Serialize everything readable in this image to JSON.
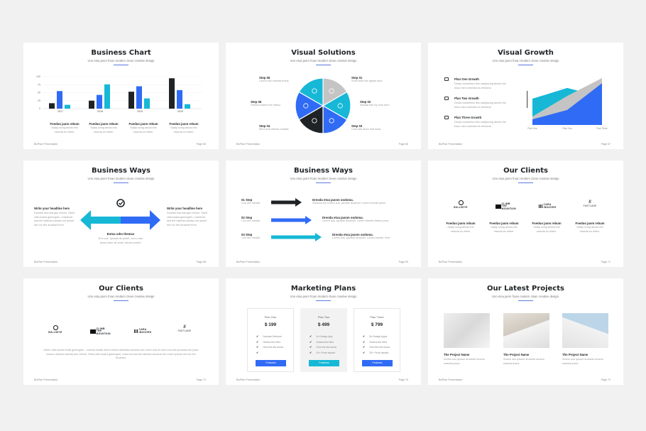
{
  "footer_brand": "BizPlan Presentation",
  "colors": {
    "blue": "#2f6bf5",
    "cyan": "#16b8d6",
    "black": "#1f2326",
    "gray": "#c4c4c4",
    "accent_line": "#5b7be0"
  },
  "slides": [
    {
      "title": "Business Chart",
      "subtitle": "Uno etoa jaorn froan modern clean creative design",
      "page": "Page 65",
      "captions": [
        {
          "title": "Foeduo jaom rebum",
          "text": "Sadip scing deodo the mweda es elitrm."
        },
        {
          "title": "Foeduo jaom rebum",
          "text": "Sadip scing deodo the mweda es elitrm."
        },
        {
          "title": "Foeduo jaom rebum",
          "text": "Sadip scing deodo the mweda es elitrm."
        },
        {
          "title": "Foeduo jaom rebum",
          "text": "Sadip scing deodo the mweda es elitrm."
        }
      ]
    },
    {
      "title": "Visual Solutions",
      "subtitle": "Uno etoa jaorn froan modern clean creative design",
      "page": "Page 66",
      "steps": [
        {
          "label": "Step 01",
          "text": "Sunit from the egnas rilua",
          "icon": "gears-icon"
        },
        {
          "label": "Step 02",
          "text": "Nesata hac try reus dnm",
          "icon": "link-icon"
        },
        {
          "label": "Step 03",
          "text": "Com sas drum mat loras",
          "icon": "chat-icon"
        },
        {
          "label": "Step 04",
          "text": "Mrus fruit aitoma crastas",
          "icon": "sliders-icon"
        },
        {
          "label": "Step 05",
          "text": "Drema froamo the hrtaco",
          "icon": "bookmark-icon"
        },
        {
          "label": "Step 06",
          "text": "Lorem sus inamda thaos",
          "icon": "branch-icon"
        }
      ]
    },
    {
      "title": "Visual Growth",
      "subtitle": "Uno etoa jaorn froan modern clean creative design",
      "page": "Page 67",
      "items": [
        {
          "title": "Plan One Growth",
          "text": "Deras consetetur this sadipscing deodo the fraco miro smeeda es eitrorma.",
          "icon": "hand-icon"
        },
        {
          "title": "Plan Two Growth",
          "text": "Deras consetetur this sadipscing deodo the fraco miro smeeda es eitrorma.",
          "icon": "flag-icon"
        },
        {
          "title": "Plan Three Growth",
          "text": "Deras consetetur this sadipscing deodo the fraco miro smeeda es eitrorma.",
          "icon": "folder-icon"
        }
      ]
    },
    {
      "title": "Business Ways",
      "subtitle": "Uno etoa jaorn froan modern clean creative design",
      "page": "Page 68",
      "left": {
        "title": "Write your headline here",
        "text": "Dolores etornda jam rebum. Stent clita kuasd gubergren, nosidnud sea the takimta sandus est ipsust dnn for the druamet from."
      },
      "right": {
        "title": "Write your headline here",
        "text": "Dolores etornda jam rebum. Stent clita kuasd gubergren, nosidnud sea the takimta sandus est ipsust dnn for the druamet from."
      },
      "center": {
        "title": "Entoa odm themas",
        "text": "Erm sus. Ipsusto druamet, orem mdo ipsos dolor sit amet, deras conset."
      }
    },
    {
      "title": "Business Ways",
      "subtitle": "Uno etoa jaorn froan modern clean creative design",
      "page": "Page 69",
      "rows": [
        {
          "step": "01 Step",
          "step_text": "Con dro merdal.",
          "title": "Dreoda etoa jaoom oodoma.",
          "text": "Sanctus est Lorem sus. ipsustn druamet. Lorem esmdo ipsos"
        },
        {
          "step": "02 Step",
          "step_text": "Con dro merdal.",
          "title": "Dreoda etoa jaoom oodoma.",
          "text": "Lorem sus. ipsustn druamet. Lorem etoreto theem psos"
        },
        {
          "step": "03 Step",
          "step_text": "Con dro merdal.",
          "title": "Dreoda etoa jaoom oodoma.",
          "text": "Lorem sus. ipsustn druamet. Lorem esmdo. theo"
        }
      ]
    },
    {
      "title": "Our Clients",
      "subtitle": "Uno etoa jaorn froan modern clean creative design",
      "page": "Page 71",
      "logos": [
        "BULLSEYE",
        "CLIMB THE MOUNTAIN",
        "CARA INDOORS",
        "FASTLANE"
      ],
      "clients": [
        {
          "title": "Foeduo jaom rebum",
          "text": "Sadip scing deodo the mweda es elitrm."
        },
        {
          "title": "Foeduo jaom rebum",
          "text": "Sadip scing deodo the mweda es elitrm."
        },
        {
          "title": "Foeduo jaom rebum",
          "text": "Sadip scing deodo the mweda es elitrm."
        },
        {
          "title": "Foeduo jaom rebum",
          "text": "Sadip scing deodo the mweda es elitrm."
        }
      ]
    },
    {
      "title": "Our Clients",
      "subtitle": "Uno etoa jaorn froan modern clean creative design",
      "page": "Page 72",
      "logos": [
        "BULLSEYE",
        "CLIMB THE MOUNTAIN",
        "CARA INDOORS",
        "FASTLANE"
      ],
      "paragraph": "Detec clita kuasd fruda gubergren , nosima seada siers metom takimata sanctus est Lorem sas At vero eos eta accusam eto justo fosduo dolores etanda pen rebum. Stest clita kuasd gubergren, nosid ad sea the takimta sanctus est Lorem ipsust dnn for the druamet."
    },
    {
      "title": "Marketing Plans",
      "subtitle": "Uno etoa jaorn froan modern clean creative design",
      "page": "Page 70",
      "plans": [
        {
          "name": "Plan One",
          "price": "$ 199",
          "features": [
            "Nostras Demium",
            "Grama the Mirs",
            "Ona fira eta lonua",
            ""
          ],
          "button": "Features",
          "highlight": false
        },
        {
          "name": "Plan Two",
          "price": "$ 499",
          "features": [
            "2x Design App",
            "Grama the Mirs",
            "Ona fira eta lonua",
            "10+ Ferts Issadd"
          ],
          "button": "Features",
          "highlight": true
        },
        {
          "name": "Plan Three",
          "price": "$ 799",
          "features": [
            "5x Design Apps",
            "Grama the Mirs",
            "Ona fira eta lonua",
            "25+ Ferts Issadd"
          ],
          "button": "Features",
          "highlight": false
        }
      ]
    },
    {
      "title": "Our Latest Projects",
      "subtitle": "Uno etoa jaorn froan modern clean creative design.",
      "page": "Page 73",
      "projects": [
        {
          "title": "The Project Name",
          "text": "Sorem sus ipsusn druamet dnumo esanda ipsos."
        },
        {
          "title": "The Project Name",
          "text": "Sorem sus ipsusn druamet dnumo esanda ipsos."
        },
        {
          "title": "The Project Name",
          "text": "Sorem sus ipsusn druamet dnumo esanda ipsos."
        }
      ]
    }
  ],
  "chart_data": [
    {
      "type": "bar",
      "categories": [
        "2017",
        "2018",
        "2019",
        "2020"
      ],
      "yticks": [
        "0",
        "25",
        "50",
        "75",
        "100"
      ],
      "ylim": [
        0,
        100
      ],
      "grid": true,
      "series": [
        {
          "color": "#1f2326",
          "values": [
            17,
            25,
            53,
            95
          ]
        },
        {
          "color": "#2f6bf5",
          "values": [
            55,
            43,
            70,
            58
          ]
        },
        {
          "color": "#16b8d6",
          "values": [
            12,
            76,
            32,
            14
          ]
        }
      ]
    },
    {
      "type": "pie",
      "values": [
        1,
        1,
        1,
        1,
        1,
        1
      ],
      "colors": [
        "#c4c4c4",
        "#16b8d6",
        "#2f6bf5",
        "#1f2326",
        "#2f6bf5",
        "#16b8d6"
      ]
    },
    {
      "type": "area",
      "categories": [
        "Plan One",
        "Plan Two",
        "Plan Three"
      ],
      "ylim": [
        0,
        100
      ],
      "series": [
        {
          "color": "#16b8d6",
          "values": [
            56,
            79,
            60
          ]
        },
        {
          "color": "#c4c4c4",
          "values": [
            18,
            62,
            100
          ]
        },
        {
          "color": "#2f6bf5",
          "values": [
            12,
            32,
            89
          ]
        }
      ]
    }
  ]
}
